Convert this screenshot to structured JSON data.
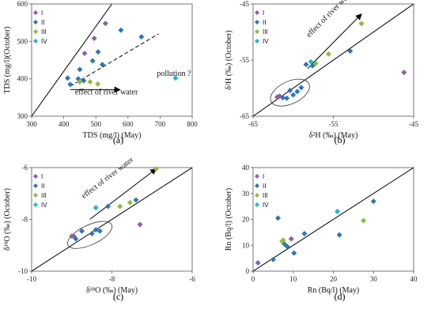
{
  "figure": {
    "series_colors": {
      "I": "#8e5ea2",
      "II": "#2e75b6",
      "III": "#8fbc3b",
      "IV": "#1fb5d0"
    }
  },
  "chart_data": [
    {
      "type": "scatter",
      "panel_label": "(a)",
      "xlabel": "TDS (mg/l) (May)",
      "ylabel": "TDS (mg/l)(October)",
      "xlim": [
        300,
        800
      ],
      "ylim": [
        300,
        600
      ],
      "xticks": [
        "300",
        "400",
        "500",
        "600",
        "700",
        "800"
      ],
      "yticks": [
        "300",
        "400",
        "500",
        "600"
      ],
      "legend_placement": "top-left",
      "series": [
        {
          "name": "I",
          "points": [
            [
              465,
              468
            ],
            [
              495,
              508
            ],
            [
              530,
              548
            ]
          ]
        },
        {
          "name": "II",
          "points": [
            [
              412,
              402
            ],
            [
              420,
              385
            ],
            [
              445,
              400
            ],
            [
              450,
              425
            ],
            [
              462,
              395
            ],
            [
              490,
              448
            ],
            [
              507,
              472
            ],
            [
              520,
              438
            ],
            [
              578,
              530
            ],
            [
              642,
              512
            ]
          ]
        },
        {
          "name": "III",
          "points": [
            [
              450,
              392
            ],
            [
              482,
              392
            ],
            [
              506,
              386
            ]
          ]
        },
        {
          "name": "IV",
          "points": [
            [
              748,
              402
            ]
          ]
        }
      ],
      "reference_lines": [
        {
          "style": "solid",
          "from": [
            300,
            300
          ],
          "to": [
            550,
            600
          ]
        },
        {
          "style": "dashed",
          "from": [
            420,
            380
          ],
          "to": [
            695,
            520
          ]
        }
      ],
      "annotations": [
        {
          "text": "effect of river water",
          "x": 435,
          "y": 358,
          "arrow_from": [
            420,
            371
          ],
          "arrow_to": [
            575,
            371
          ]
        },
        {
          "text": "pollution ?",
          "x": 690,
          "y": 408,
          "arrow_from": null,
          "arrow_to": null
        }
      ]
    },
    {
      "type": "scatter",
      "panel_label": "(b)",
      "xlabel": "δ²H (‰) (May)",
      "ylabel": "δ²H (‰) (October)",
      "xlim": [
        -65,
        -45
      ],
      "ylim": [
        -65,
        -45
      ],
      "xticks": [
        "-65",
        "-55",
        "-45"
      ],
      "yticks": [
        "-65",
        "-55",
        "-45"
      ],
      "legend_placement": "top-left",
      "series": [
        {
          "name": "I",
          "points": [
            [
              -62.0,
              -61.6
            ],
            [
              -61.7,
              -61.4
            ],
            [
              -46.2,
              -57.2
            ]
          ]
        },
        {
          "name": "II",
          "points": [
            [
              -61.3,
              -61.7
            ],
            [
              -60.8,
              -61.8
            ],
            [
              -60.4,
              -60.4
            ],
            [
              -60.0,
              -61.2
            ],
            [
              -59.5,
              -60.6
            ],
            [
              -59.0,
              -59.9
            ],
            [
              -58.4,
              -55.8
            ],
            [
              -57.6,
              -56.0
            ],
            [
              -52.9,
              -53.4
            ]
          ]
        },
        {
          "name": "III",
          "points": [
            [
              -57.2,
              -55.6
            ],
            [
              -55.6,
              -53.9
            ],
            [
              -51.5,
              -48.5
            ]
          ]
        },
        {
          "name": "IV",
          "points": [
            [
              -57.8,
              -55.3
            ]
          ]
        }
      ],
      "reference_lines": [
        {
          "style": "solid",
          "from": [
            -65,
            -65
          ],
          "to": [
            -45,
            -45
          ]
        }
      ],
      "annotations": [
        {
          "text": "effect of river water",
          "x": -58.0,
          "y": -51.0,
          "arrow_from": [
            -58.2,
            -56.5
          ],
          "arrow_to": [
            -51.5,
            -46.8
          ]
        }
      ],
      "ellipse": {
        "cx": -60.4,
        "cy": -60.8,
        "rx": 2.6,
        "ry": 2.0
      }
    },
    {
      "type": "scatter",
      "panel_label": "(c)",
      "xlabel": "δ¹⁸O (‰) (May)",
      "ylabel": "δ¹⁸O (‰) (October)",
      "xlim": [
        -10,
        -6
      ],
      "ylim": [
        -10,
        -6
      ],
      "xticks": [
        "-10",
        "-8",
        "-6"
      ],
      "yticks": [
        "-10",
        "-8",
        "-6"
      ],
      "legend_placement": "top-left",
      "series": [
        {
          "name": "I",
          "points": [
            [
              -9.0,
              -8.65
            ],
            [
              -8.95,
              -8.65
            ],
            [
              -7.3,
              -8.2
            ]
          ]
        },
        {
          "name": "II",
          "points": [
            [
              -8.9,
              -8.75
            ],
            [
              -8.75,
              -8.45
            ],
            [
              -8.5,
              -8.55
            ],
            [
              -8.4,
              -8.4
            ],
            [
              -8.3,
              -8.45
            ],
            [
              -8.1,
              -7.5
            ],
            [
              -7.4,
              -7.25
            ]
          ]
        },
        {
          "name": "III",
          "points": [
            [
              -7.8,
              -7.5
            ],
            [
              -7.55,
              -7.35
            ],
            [
              -6.9,
              -6.05
            ]
          ]
        },
        {
          "name": "IV",
          "points": [
            [
              -8.4,
              -7.55
            ]
          ]
        }
      ],
      "reference_lines": [
        {
          "style": "solid",
          "from": [
            -10,
            -10
          ],
          "to": [
            -6,
            -6
          ]
        }
      ],
      "annotations": [
        {
          "text": "effect of river water",
          "x": -8.7,
          "y": -7.2,
          "arrow_from": [
            -8.55,
            -8.0
          ],
          "arrow_to": [
            -6.9,
            -6.05
          ]
        }
      ],
      "ellipse": {
        "cx": -8.55,
        "cy": -8.6,
        "rx": 0.6,
        "ry": 0.38
      }
    },
    {
      "type": "scatter",
      "panel_label": "(d)",
      "xlabel": "Rn (Bq/l) (May)",
      "ylabel": "Rn (Bq/l) (October)",
      "xlim": [
        0,
        40
      ],
      "ylim": [
        0,
        40
      ],
      "xticks": [
        "0",
        "10",
        "20",
        "30",
        "40"
      ],
      "yticks": [
        "0",
        "10",
        "20",
        "30",
        "40"
      ],
      "legend_placement": "top-left",
      "series": [
        {
          "name": "I",
          "points": [
            [
              1.2,
              3.2
            ],
            [
              9.5,
              12.5
            ]
          ]
        },
        {
          "name": "II",
          "points": [
            [
              5.0,
              4.5
            ],
            [
              6.2,
              20.5
            ],
            [
              7.8,
              10.5
            ],
            [
              8.5,
              9.5
            ],
            [
              10.2,
              7.0
            ],
            [
              12.8,
              14.5
            ],
            [
              21.5,
              14.0
            ],
            [
              30.0,
              27.0
            ]
          ]
        },
        {
          "name": "III",
          "points": [
            [
              7.2,
              11.5
            ],
            [
              7.5,
              12.0
            ],
            [
              27.5,
              19.5
            ]
          ]
        },
        {
          "name": "IV",
          "points": [
            [
              21.0,
              23.0
            ]
          ]
        }
      ],
      "reference_lines": [
        {
          "style": "solid",
          "from": [
            0,
            0
          ],
          "to": [
            40,
            40
          ]
        }
      ],
      "annotations": []
    }
  ]
}
